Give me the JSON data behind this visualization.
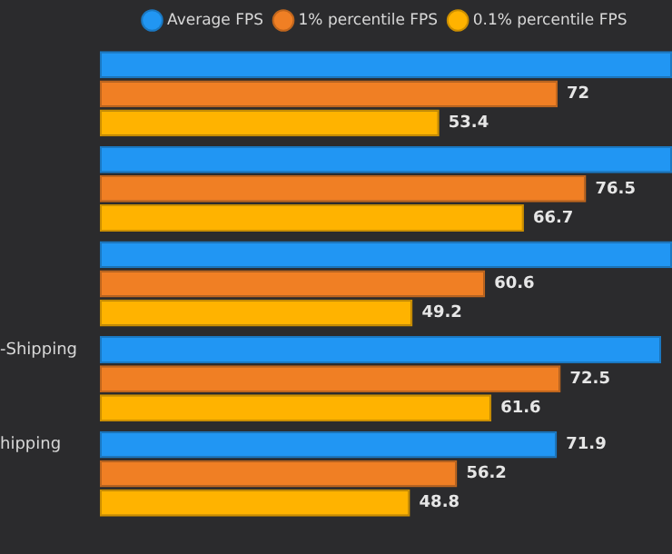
{
  "chart_data": {
    "type": "bar",
    "orientation": "horizontal",
    "categories": [
      null,
      null,
      null,
      "-Shipping",
      "hipping"
    ],
    "xlim": [
      0,
      90
    ],
    "legend": "top",
    "tick_labels": "y",
    "series": [
      {
        "name": "Average FPS",
        "color": "#2196f3",
        "values": [
          90,
          90,
          90,
          88.3,
          71.9
        ],
        "value_labels": [
          null,
          null,
          null,
          null,
          "71.9"
        ]
      },
      {
        "name": "1% percentile FPS",
        "color": "#f07f24",
        "values": [
          72,
          76.5,
          60.6,
          72.5,
          56.2
        ],
        "value_labels": [
          "72",
          "76.5",
          "60.6",
          "72.5",
          "56.2"
        ]
      },
      {
        "name": "0.1% percentile FPS",
        "color": "#ffb300",
        "values": [
          53.4,
          66.7,
          49.2,
          61.6,
          48.8
        ],
        "value_labels": [
          "53.4",
          "66.7",
          "49.2",
          "61.6",
          "48.8"
        ]
      }
    ]
  }
}
